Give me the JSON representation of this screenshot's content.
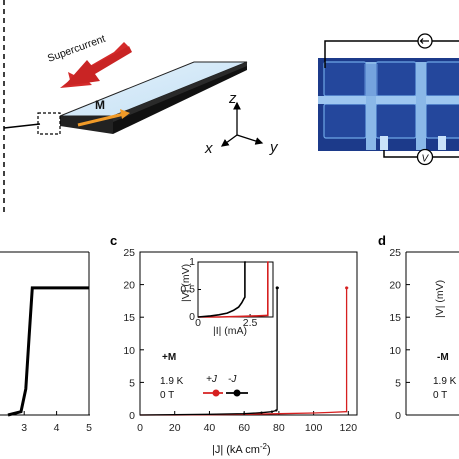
{
  "schematic": {
    "supercurrent_label": "Supercurrent",
    "magnetization_label": "M",
    "axis_z": "z",
    "axis_x": "x",
    "axis_y": "y",
    "colors": {
      "supercurrent_arrow": "#d42a2a",
      "magnetization_arrow": "#f09a28",
      "slab_top": "#d6eaf8"
    }
  },
  "micrograph": {
    "current_source_icon": "arrow-circle-icon",
    "voltmeter_label": "V"
  },
  "panel_c": {
    "letter": "c",
    "field_label": "+M",
    "temperature": "1.9 K",
    "field": "0 T",
    "legend_pos": "+J",
    "legend_neg": "-J",
    "inset_ylabel": "|V| (mV)",
    "inset_xlabel": "|I| (mA)",
    "xlabel": "|J| (kA cm",
    "xlabel_exp": "-2",
    "xlabel_close": ")",
    "colors": {
      "pos": "#d62020",
      "neg": "#000000"
    }
  },
  "panel_d": {
    "letter": "d",
    "field_label": "-M",
    "temperature": "1.9 K",
    "field": "0 T",
    "ylabel": "|V| (mV)"
  },
  "panel_b_partial": {
    "xticks": [
      "3",
      "4",
      "5"
    ]
  },
  "chart_data": [
    {
      "type": "line",
      "panel": "c",
      "xlabel": "|J| (kA cm-2)",
      "ylabel": "|V| (mV)",
      "xlim": [
        0,
        125
      ],
      "ylim": [
        0,
        25
      ],
      "xticks": [
        0,
        20,
        40,
        60,
        80,
        100,
        120
      ],
      "yticks": [
        0,
        5,
        10,
        15,
        20,
        25
      ],
      "series": [
        {
          "name": "+J",
          "color": "#d62020",
          "x": [
            0,
            20,
            40,
            60,
            80,
            100,
            110,
            118.5,
            119,
            119,
            120
          ],
          "y": [
            0,
            0,
            0.05,
            0.1,
            0.2,
            0.3,
            0.4,
            0.5,
            0.5,
            19.5,
            19.5
          ]
        },
        {
          "name": "-J",
          "color": "#000000",
          "x": [
            0,
            20,
            40,
            60,
            70,
            76,
            78.5,
            79,
            79,
            80
          ],
          "y": [
            0,
            0.05,
            0.1,
            0.2,
            0.35,
            0.5,
            0.7,
            0.8,
            19.5,
            19.5
          ]
        }
      ],
      "inset": {
        "xlim": [
          0,
          3.6
        ],
        "ylim": [
          0,
          1
        ],
        "xticks": [
          0,
          2.5
        ],
        "yticks": [
          0,
          0.5,
          1
        ],
        "series": [
          {
            "name": "+J",
            "color": "#d62020",
            "x": [
              0,
              1,
              2,
              2.8,
              3.3,
              3.35,
              3.35,
              3.4
            ],
            "y": [
              0,
              0,
              0.01,
              0.02,
              0.03,
              0.03,
              1,
              1
            ]
          },
          {
            "name": "-J",
            "color": "#000000",
            "x": [
              0,
              0.6,
              1.0,
              1.4,
              1.7,
              1.95,
              2.1,
              2.2,
              2.25,
              2.25,
              2.3
            ],
            "y": [
              0,
              0.02,
              0.04,
              0.07,
              0.12,
              0.18,
              0.26,
              0.33,
              0.36,
              1,
              1
            ]
          }
        ]
      }
    },
    {
      "type": "line",
      "panel": "b",
      "xticks": [
        3,
        4,
        5
      ],
      "series": [
        {
          "x": [
            2.5,
            2.9,
            3.05,
            3.15,
            3.25,
            5.0
          ],
          "y": [
            0,
            0.5,
            4,
            12,
            19.5,
            19.5
          ]
        }
      ]
    },
    {
      "type": "line",
      "panel": "d",
      "ylabel": "|V| (mV)",
      "ylim": [
        0,
        25
      ],
      "yticks": [
        0,
        5,
        10,
        15,
        20,
        25
      ]
    }
  ]
}
